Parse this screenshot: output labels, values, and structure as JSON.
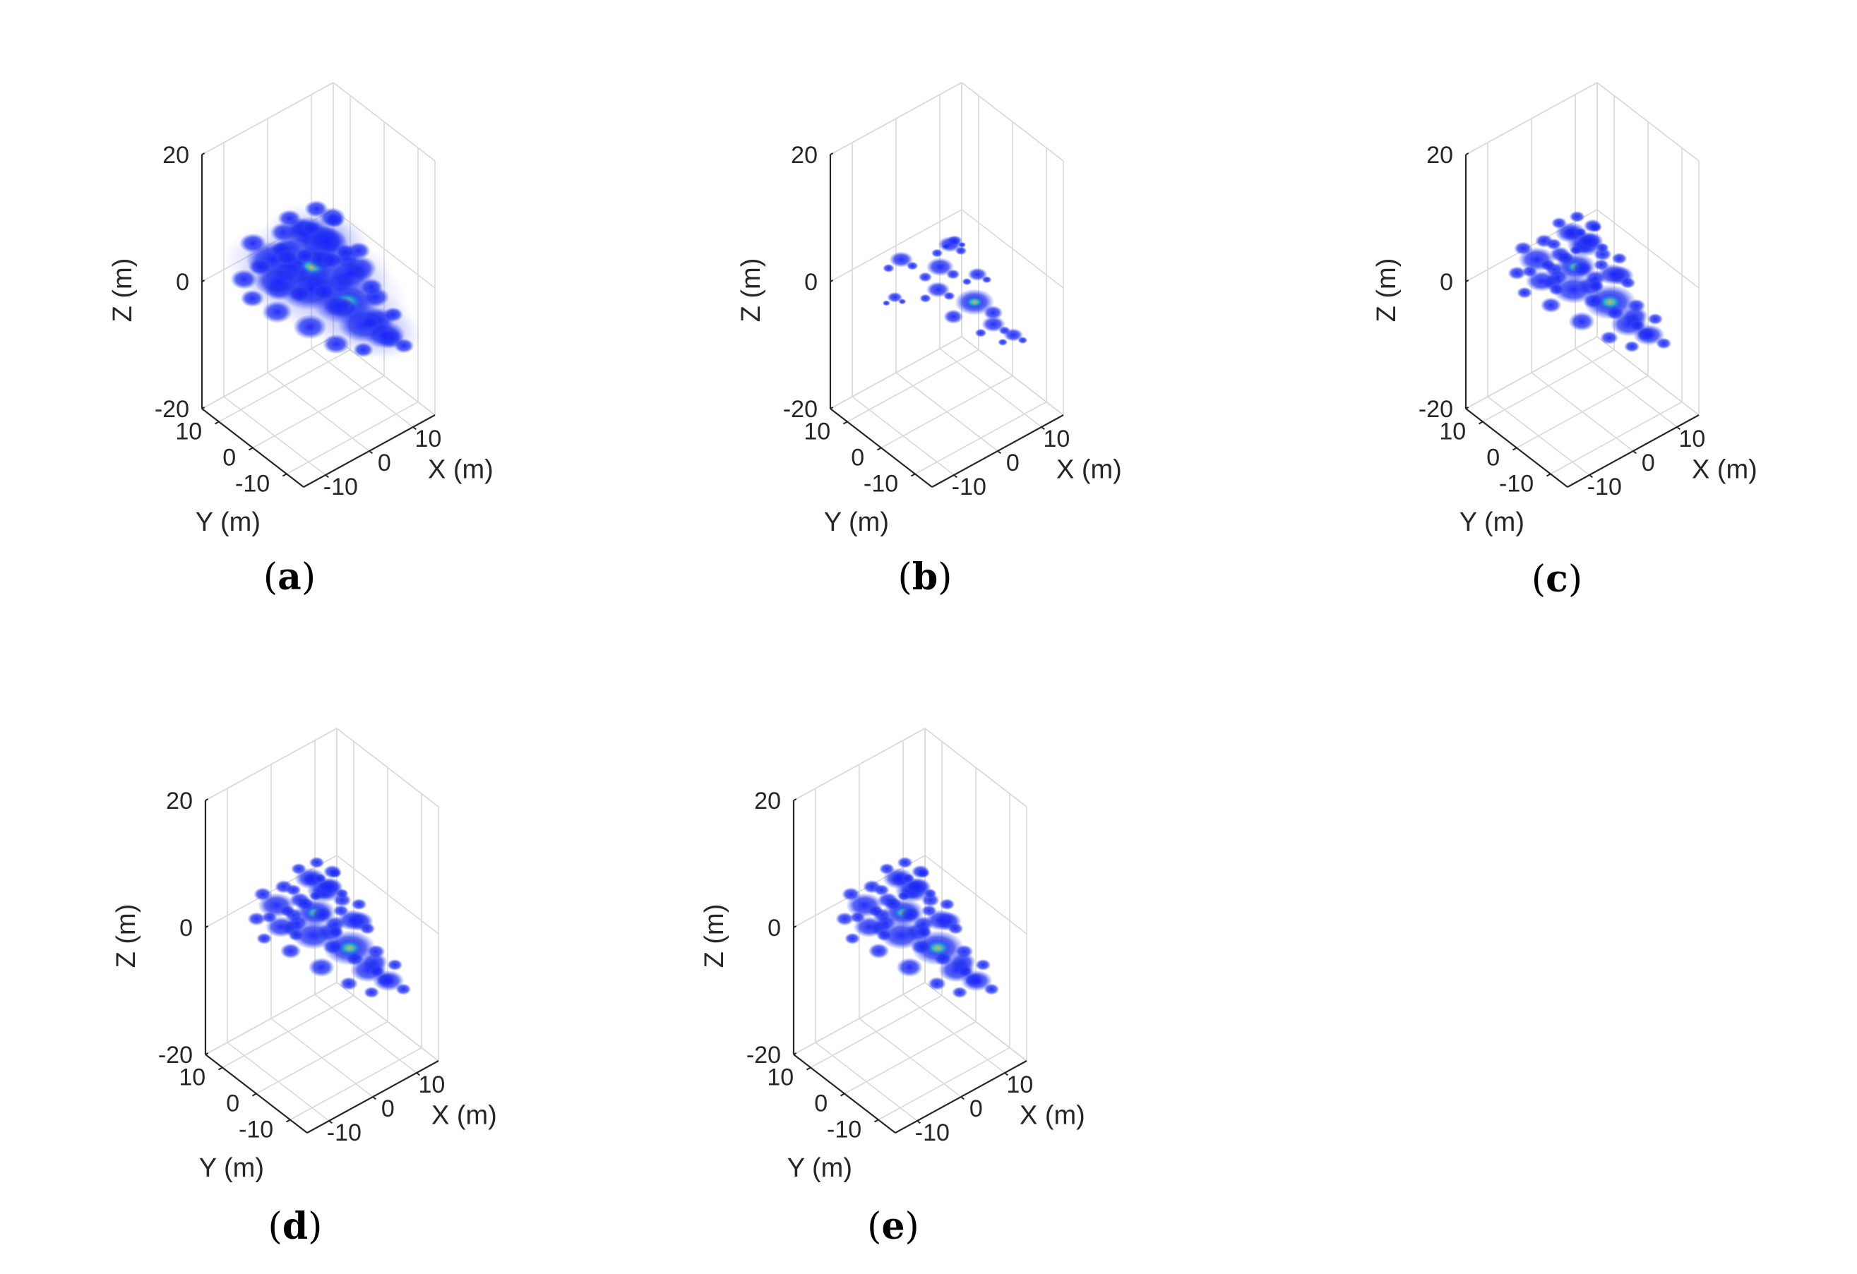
{
  "figure": {
    "description_free": true,
    "colors": {
      "grid": "#d9d9d9",
      "axis": "#262626",
      "blob_core": "#1a2bff",
      "blob_edge": "#3a4cff",
      "blob_hot": "#2fd0c8"
    }
  },
  "chart_data": [
    {
      "type": "scatter",
      "dimension": "3d",
      "panel": "a",
      "panel_label": "a",
      "xlabel": "X (m)",
      "ylabel": "Y (m)",
      "zlabel": "Z (m)",
      "xlim": [
        -15,
        15
      ],
      "ylim": [
        -15,
        15
      ],
      "zlim": [
        -20,
        20
      ],
      "x_ticks": [
        "-10",
        "0",
        "10"
      ],
      "y_ticks": [
        "10",
        "0",
        "-10"
      ],
      "z_ticks": [
        "20",
        "0",
        "-20"
      ],
      "grid": true,
      "variant": "diffuse",
      "points": [
        {
          "x": 4,
          "y": -3,
          "z": -3,
          "w": 1.0,
          "hot": true
        },
        {
          "x": 0,
          "y": 2,
          "z": 2,
          "w": 0.9,
          "hot": true
        },
        {
          "x": -5,
          "y": 7,
          "z": 3,
          "w": 0.8
        },
        {
          "x": 3,
          "y": 3,
          "z": 4,
          "w": 0.8
        },
        {
          "x": 6,
          "y": -6,
          "z": -6,
          "w": 0.8
        },
        {
          "x": -2,
          "y": 0,
          "z": 0,
          "w": 0.9
        },
        {
          "x": 2,
          "y": 6,
          "z": 5,
          "w": 0.7
        },
        {
          "x": 7,
          "y": 0,
          "z": -1,
          "w": 0.7
        },
        {
          "x": -7,
          "y": 3,
          "z": 2,
          "w": 0.7
        },
        {
          "x": 1,
          "y": -1,
          "z": 7,
          "w": 0.6
        },
        {
          "x": 9,
          "y": -8,
          "z": -8,
          "w": 0.6
        }
      ]
    },
    {
      "type": "scatter",
      "dimension": "3d",
      "panel": "b",
      "panel_label": "b",
      "xlabel": "X (m)",
      "ylabel": "Y (m)",
      "zlabel": "Z (m)",
      "xlim": [
        -15,
        15
      ],
      "ylim": [
        -15,
        15
      ],
      "zlim": [
        -20,
        20
      ],
      "x_ticks": [
        "-10",
        "0",
        "10"
      ],
      "y_ticks": [
        "10",
        "0",
        "-10"
      ],
      "z_ticks": [
        "20",
        "0",
        "-20"
      ],
      "grid": true,
      "variant": "sparse",
      "points": [
        {
          "x": 4,
          "y": -3,
          "z": -3,
          "w": 1.0,
          "hot": true
        },
        {
          "x": 0,
          "y": 2,
          "z": 2,
          "w": 0.7
        },
        {
          "x": -5,
          "y": 7,
          "z": 3,
          "w": 0.6
        },
        {
          "x": 3,
          "y": 3,
          "z": 4,
          "w": 0.6
        },
        {
          "x": 6,
          "y": -6,
          "z": -6,
          "w": 0.6
        },
        {
          "x": -2,
          "y": 0,
          "z": 0,
          "w": 0.6
        },
        {
          "x": 7,
          "y": 0,
          "z": -1,
          "w": 0.5
        },
        {
          "x": -8,
          "y": 5,
          "z": -1,
          "w": 0.4
        },
        {
          "x": 1,
          "y": -1,
          "z": 7,
          "w": 0.4
        },
        {
          "x": 9,
          "y": -8,
          "z": -8,
          "w": 0.5
        }
      ]
    },
    {
      "type": "scatter",
      "dimension": "3d",
      "panel": "c",
      "panel_label": "c",
      "xlabel": "X (m)",
      "ylabel": "Y (m)",
      "zlabel": "Z (m)",
      "xlim": [
        -15,
        15
      ],
      "ylim": [
        -15,
        15
      ],
      "zlim": [
        -20,
        20
      ],
      "x_ticks": [
        "-10",
        "0",
        "10"
      ],
      "y_ticks": [
        "10",
        "0",
        "-10"
      ],
      "z_ticks": [
        "20",
        "0",
        "-20"
      ],
      "grid": true,
      "variant": "dense",
      "points": [
        {
          "x": 4,
          "y": -3,
          "z": -3,
          "w": 1.0,
          "hot": true
        },
        {
          "x": 0,
          "y": 2,
          "z": 2,
          "w": 0.8,
          "hot": true
        },
        {
          "x": -5,
          "y": 7,
          "z": 3,
          "w": 0.7
        },
        {
          "x": 3,
          "y": 3,
          "z": 4,
          "w": 0.7
        },
        {
          "x": 6,
          "y": -6,
          "z": -6,
          "w": 0.7
        },
        {
          "x": -2,
          "y": 0,
          "z": 0,
          "w": 0.8
        },
        {
          "x": 2,
          "y": 6,
          "z": 5,
          "w": 0.6
        },
        {
          "x": 7,
          "y": 0,
          "z": -1,
          "w": 0.6
        },
        {
          "x": -7,
          "y": 3,
          "z": 2,
          "w": 0.6
        },
        {
          "x": 1,
          "y": -1,
          "z": 7,
          "w": 0.5
        },
        {
          "x": 9,
          "y": -8,
          "z": -8,
          "w": 0.6
        }
      ]
    },
    {
      "type": "scatter",
      "dimension": "3d",
      "panel": "d",
      "panel_label": "d",
      "xlabel": "X (m)",
      "ylabel": "Y (m)",
      "zlabel": "Z (m)",
      "xlim": [
        -15,
        15
      ],
      "ylim": [
        -15,
        15
      ],
      "zlim": [
        -20,
        20
      ],
      "x_ticks": [
        "-10",
        "0",
        "10"
      ],
      "y_ticks": [
        "10",
        "0",
        "-10"
      ],
      "z_ticks": [
        "20",
        "0",
        "-20"
      ],
      "grid": true,
      "variant": "dense",
      "points": [
        {
          "x": 4,
          "y": -3,
          "z": -3,
          "w": 1.0,
          "hot": true
        },
        {
          "x": 0,
          "y": 2,
          "z": 2,
          "w": 0.8,
          "hot": true
        },
        {
          "x": -5,
          "y": 7,
          "z": 3,
          "w": 0.7
        },
        {
          "x": 3,
          "y": 3,
          "z": 4,
          "w": 0.7
        },
        {
          "x": 6,
          "y": -6,
          "z": -6,
          "w": 0.7
        },
        {
          "x": -2,
          "y": 0,
          "z": 0,
          "w": 0.8
        },
        {
          "x": 2,
          "y": 6,
          "z": 5,
          "w": 0.6
        },
        {
          "x": 7,
          "y": 0,
          "z": -1,
          "w": 0.6
        },
        {
          "x": -7,
          "y": 3,
          "z": 2,
          "w": 0.6
        },
        {
          "x": 1,
          "y": -1,
          "z": 7,
          "w": 0.5
        },
        {
          "x": 9,
          "y": -8,
          "z": -8,
          "w": 0.6
        }
      ]
    },
    {
      "type": "scatter",
      "dimension": "3d",
      "panel": "e",
      "panel_label": "e",
      "xlabel": "X (m)",
      "ylabel": "Y (m)",
      "zlabel": "Z (m)",
      "xlim": [
        -15,
        15
      ],
      "ylim": [
        -15,
        15
      ],
      "zlim": [
        -20,
        20
      ],
      "x_ticks": [
        "-10",
        "0",
        "10"
      ],
      "y_ticks": [
        "10",
        "0",
        "-10"
      ],
      "z_ticks": [
        "20",
        "0",
        "-20"
      ],
      "grid": true,
      "variant": "dense",
      "points": [
        {
          "x": 4,
          "y": -3,
          "z": -3,
          "w": 1.0,
          "hot": true
        },
        {
          "x": 0,
          "y": 2,
          "z": 2,
          "w": 0.8,
          "hot": true
        },
        {
          "x": -5,
          "y": 7,
          "z": 3,
          "w": 0.7
        },
        {
          "x": 3,
          "y": 3,
          "z": 4,
          "w": 0.7
        },
        {
          "x": 6,
          "y": -6,
          "z": -6,
          "w": 0.7
        },
        {
          "x": -2,
          "y": 0,
          "z": 0,
          "w": 0.8
        },
        {
          "x": 2,
          "y": 6,
          "z": 5,
          "w": 0.6
        },
        {
          "x": 7,
          "y": 0,
          "z": -1,
          "w": 0.6
        },
        {
          "x": -7,
          "y": 3,
          "z": 2,
          "w": 0.6
        },
        {
          "x": 1,
          "y": -1,
          "z": 7,
          "w": 0.5
        },
        {
          "x": 9,
          "y": -8,
          "z": -8,
          "w": 0.6
        }
      ]
    }
  ]
}
